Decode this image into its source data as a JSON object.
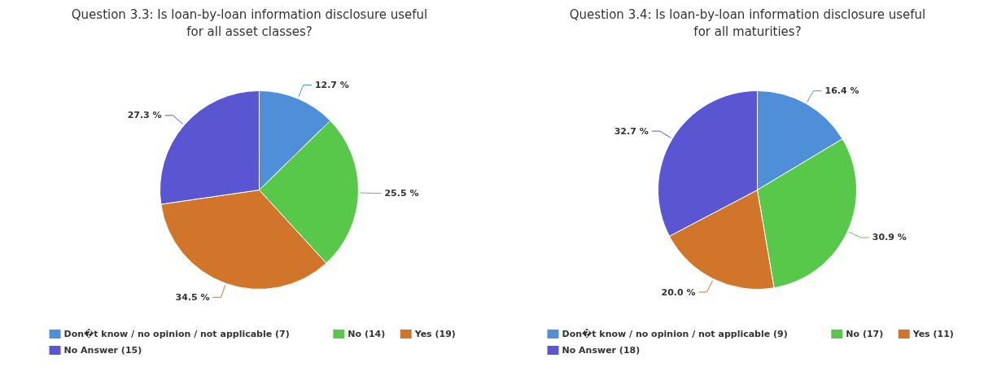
{
  "chart_data": [
    {
      "type": "pie",
      "title": "Question 3.3: Is loan-by-loan information disclosure useful for all asset classes?",
      "categories": [
        "Don�t know / no opinion / not applicable (7)",
        "No (14)",
        "Yes (19)",
        "No Answer (15)"
      ],
      "values": [
        12.7,
        25.5,
        34.5,
        27.3
      ],
      "colors": [
        "#4f8fd8",
        "#58c84a",
        "#d0752a",
        "#5a55d0"
      ],
      "value_labels": [
        "12.7 %",
        "25.5 %",
        "34.5 %",
        "27.3 %"
      ],
      "legend": "bottom"
    },
    {
      "type": "pie",
      "title": "Question 3.4: Is loan-by-loan information disclosure useful for all maturities?",
      "categories": [
        "Don�t know / no opinion / not applicable (9)",
        "No (17)",
        "Yes (11)",
        "No Answer (18)"
      ],
      "values": [
        16.4,
        30.9,
        20.0,
        32.7
      ],
      "colors": [
        "#4f8fd8",
        "#58c84a",
        "#d0752a",
        "#5a55d0"
      ],
      "value_labels": [
        "16.4 %",
        "30.9 %",
        "20.0 %",
        "32.7 %"
      ],
      "legend": "bottom"
    }
  ]
}
